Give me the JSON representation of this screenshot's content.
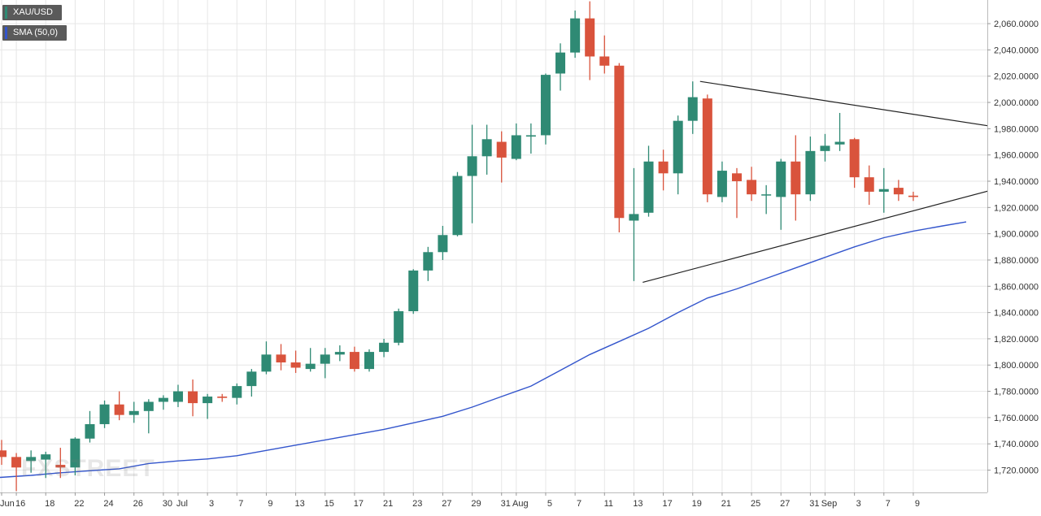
{
  "legend": {
    "pair": "XAU/USD",
    "sma": "SMA (50,0)"
  },
  "watermark": "FXSTREET",
  "colors": {
    "bull": "#2f8a74",
    "bear": "#d9533c",
    "sma": "#3355cc",
    "trendline": "#222222",
    "grid": "#e6e6e6",
    "axis_text": "#333333",
    "legend_bg": "#5a5a5a"
  },
  "chart_data": {
    "type": "candlestick",
    "title": "XAU/USD",
    "ylim": [
      1703,
      2078
    ],
    "y_ticks": [
      "2,060.0000",
      "2,040.0000",
      "2,020.0000",
      "2,000.0000",
      "1,980.0000",
      "1,960.0000",
      "1,940.0000",
      "1,920.0000",
      "1,900.0000",
      "1,880.0000",
      "1,860.0000",
      "1,840.0000",
      "1,820.0000",
      "1,800.0000",
      "1,780.0000",
      "1,760.0000",
      "1,740.0000",
      "1,720.0000"
    ],
    "x_ticks": [
      {
        "label": "Jun",
        "i": 0
      },
      {
        "label": "16",
        "i": 1
      },
      {
        "label": "18",
        "i": 3
      },
      {
        "label": "22",
        "i": 5
      },
      {
        "label": "24",
        "i": 7
      },
      {
        "label": "26",
        "i": 9
      },
      {
        "label": "30",
        "i": 11
      },
      {
        "label": "Jul",
        "i": 12
      },
      {
        "label": "3",
        "i": 14
      },
      {
        "label": "7",
        "i": 16
      },
      {
        "label": "9",
        "i": 18
      },
      {
        "label": "13",
        "i": 20
      },
      {
        "label": "15",
        "i": 22
      },
      {
        "label": "17",
        "i": 24
      },
      {
        "label": "21",
        "i": 26
      },
      {
        "label": "23",
        "i": 28
      },
      {
        "label": "27",
        "i": 30
      },
      {
        "label": "29",
        "i": 32
      },
      {
        "label": "31",
        "i": 34
      },
      {
        "label": "Aug",
        "i": 35
      },
      {
        "label": "5",
        "i": 37
      },
      {
        "label": "7",
        "i": 39
      },
      {
        "label": "11",
        "i": 41
      },
      {
        "label": "13",
        "i": 43
      },
      {
        "label": "17",
        "i": 45
      },
      {
        "label": "19",
        "i": 47
      },
      {
        "label": "21",
        "i": 49
      },
      {
        "label": "25",
        "i": 51
      },
      {
        "label": "27",
        "i": 53
      },
      {
        "label": "31",
        "i": 55
      },
      {
        "label": "Sep",
        "i": 56
      },
      {
        "label": "3",
        "i": 58
      },
      {
        "label": "7",
        "i": 60
      },
      {
        "label": "9",
        "i": 62
      }
    ],
    "candles": [
      [
        1735,
        1730,
        1743,
        1724
      ],
      [
        1730,
        1722,
        1733,
        1704
      ],
      [
        1727,
        1730,
        1735,
        1718
      ],
      [
        1728,
        1732,
        1734,
        1714
      ],
      [
        1724,
        1722,
        1737,
        1714
      ],
      [
        1722,
        1744,
        1745,
        1716
      ],
      [
        1744,
        1755,
        1765,
        1741
      ],
      [
        1755,
        1770,
        1773,
        1752
      ],
      [
        1770,
        1762,
        1780,
        1758
      ],
      [
        1762,
        1765,
        1772,
        1756
      ],
      [
        1765,
        1772,
        1774,
        1748
      ],
      [
        1772,
        1775,
        1777,
        1766
      ],
      [
        1772,
        1780,
        1785,
        1768
      ],
      [
        1780,
        1771,
        1789,
        1761
      ],
      [
        1771,
        1776,
        1778,
        1759
      ],
      [
        1776,
        1775,
        1778,
        1772
      ],
      [
        1775,
        1784,
        1786,
        1770
      ],
      [
        1784,
        1795,
        1797,
        1776
      ],
      [
        1795,
        1808,
        1818,
        1793
      ],
      [
        1808,
        1802,
        1816,
        1796
      ],
      [
        1802,
        1798,
        1811,
        1794
      ],
      [
        1797,
        1801,
        1813,
        1795
      ],
      [
        1801,
        1808,
        1813,
        1790
      ],
      [
        1808,
        1810,
        1815,
        1803
      ],
      [
        1810,
        1797,
        1814,
        1795
      ],
      [
        1797,
        1810,
        1812,
        1795
      ],
      [
        1810,
        1817,
        1820,
        1806
      ],
      [
        1817,
        1841,
        1843,
        1815
      ],
      [
        1841,
        1872,
        1873,
        1839
      ],
      [
        1872,
        1886,
        1890,
        1864
      ],
      [
        1886,
        1899,
        1906,
        1880
      ],
      [
        1899,
        1944,
        1947,
        1898
      ],
      [
        1944,
        1959,
        1983,
        1908
      ],
      [
        1959,
        1972,
        1983,
        1945
      ],
      [
        1970,
        1958,
        1978,
        1939
      ],
      [
        1957,
        1975,
        1984,
        1956
      ],
      [
        1974,
        1975,
        1984,
        1961
      ],
      [
        1975,
        2021,
        2022,
        1968
      ],
      [
        2022,
        2038,
        2045,
        2009
      ],
      [
        2038,
        2064,
        2070,
        2034
      ],
      [
        2064,
        2035,
        2077,
        2017
      ],
      [
        2035,
        2028,
        2051,
        2022
      ],
      [
        2028,
        1912,
        2030,
        1901
      ],
      [
        1910,
        1915,
        1950,
        1864
      ],
      [
        1916,
        1955,
        1967,
        1913
      ],
      [
        1955,
        1946,
        1964,
        1933
      ],
      [
        1946,
        1986,
        1990,
        1930
      ],
      [
        1986,
        2004,
        2016,
        1976
      ],
      [
        2003,
        1930,
        2006,
        1924
      ],
      [
        1928,
        1948,
        1955,
        1924
      ],
      [
        1946,
        1940,
        1950,
        1912
      ],
      [
        1941,
        1930,
        1951,
        1925
      ],
      [
        1930,
        1930,
        1937,
        1915
      ],
      [
        1928,
        1955,
        1957,
        1903
      ],
      [
        1955,
        1930,
        1975,
        1910
      ],
      [
        1930,
        1963,
        1974,
        1925
      ],
      [
        1963,
        1967,
        1976,
        1955
      ],
      [
        1968,
        1970,
        1992,
        1963
      ],
      [
        1972,
        1943,
        1973,
        1935
      ],
      [
        1943,
        1932,
        1952,
        1922
      ],
      [
        1932,
        1934,
        1950,
        1916
      ],
      [
        1935,
        1930,
        1941,
        1925
      ],
      [
        1929,
        1928,
        1932,
        1925
      ]
    ],
    "series": [
      {
        "name": "SMA (50,0)",
        "points": [
          [
            -0.7,
            1714
          ],
          [
            2,
            1716
          ],
          [
            4,
            1718
          ],
          [
            6,
            1719.5
          ],
          [
            8,
            1721
          ],
          [
            10,
            1725
          ],
          [
            12,
            1727
          ],
          [
            14,
            1728.5
          ],
          [
            16,
            1731
          ],
          [
            18,
            1735
          ],
          [
            20,
            1739
          ],
          [
            22,
            1743
          ],
          [
            24,
            1747
          ],
          [
            26,
            1751
          ],
          [
            28,
            1756
          ],
          [
            30,
            1761
          ],
          [
            32,
            1768
          ],
          [
            34,
            1776
          ],
          [
            36,
            1784
          ],
          [
            38,
            1796
          ],
          [
            40,
            1808
          ],
          [
            42,
            1818
          ],
          [
            44,
            1828
          ],
          [
            46,
            1840
          ],
          [
            48,
            1851
          ],
          [
            50,
            1858
          ],
          [
            52,
            1866
          ],
          [
            54,
            1874
          ],
          [
            56,
            1882
          ],
          [
            58,
            1890
          ],
          [
            60,
            1897
          ],
          [
            62,
            1902
          ],
          [
            64,
            1906
          ],
          [
            65.6,
            1909
          ]
        ]
      }
    ],
    "trendlines": [
      {
        "points": [
          [
            47.5,
            2016
          ],
          [
            73,
            1972
          ]
        ]
      },
      {
        "points": [
          [
            43.6,
            1863
          ],
          [
            73,
            1950
          ]
        ]
      }
    ]
  }
}
